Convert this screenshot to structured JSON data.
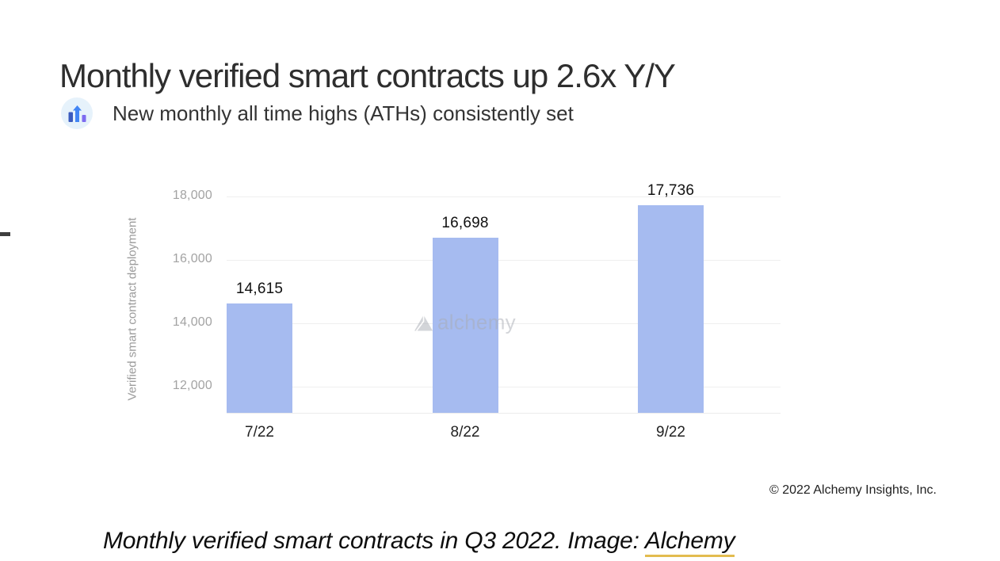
{
  "header": {
    "title": "Monthly verified smart contracts up 2.6x Y/Y",
    "subtitle": "New monthly all time highs (ATHs) consistently set",
    "subtitle_icon": "bar-chart-up-icon"
  },
  "chart_data": {
    "type": "bar",
    "title": "",
    "categories": [
      "7/22",
      "8/22",
      "9/22"
    ],
    "values": [
      14615,
      16698,
      17736
    ],
    "value_labels": [
      "14,615",
      "16,698",
      "17,736"
    ],
    "xlabel": "",
    "ylabel": "Verified smart contract deployment",
    "yticks": [
      12000,
      14000,
      16000,
      18000
    ],
    "ytick_labels": [
      "12,000",
      "14,000",
      "16,000",
      "18,000"
    ],
    "ylim": [
      11175,
      18500
    ],
    "grid": true,
    "legend_position": "none",
    "bar_color": "#a6bbf0"
  },
  "watermark": {
    "logo": "alchemy-triangle-icon",
    "text": "alchemy"
  },
  "footer": {
    "copyright": "© 2022 Alchemy Insights, Inc."
  },
  "caption": {
    "text": "Monthly verified smart contracts in Q3 2022. Image: ",
    "link_text": "Alchemy",
    "link_underline_color": "#e3bc4f"
  },
  "colors": {
    "bar": "#a6bbf0",
    "icon_circle_bg": "#e6f2fb",
    "icon_bar_left": "#3b5bbf",
    "icon_arrow": "#4285f4",
    "icon_bar_right": "#7d6bf0",
    "grid_line": "#efefef",
    "tick_label": "#a3a3a3",
    "axis_title": "#9b9b9b",
    "title_text": "#2e2e2e",
    "watermark": "#a9acb4",
    "caption_underline": "#e3bc4f"
  }
}
